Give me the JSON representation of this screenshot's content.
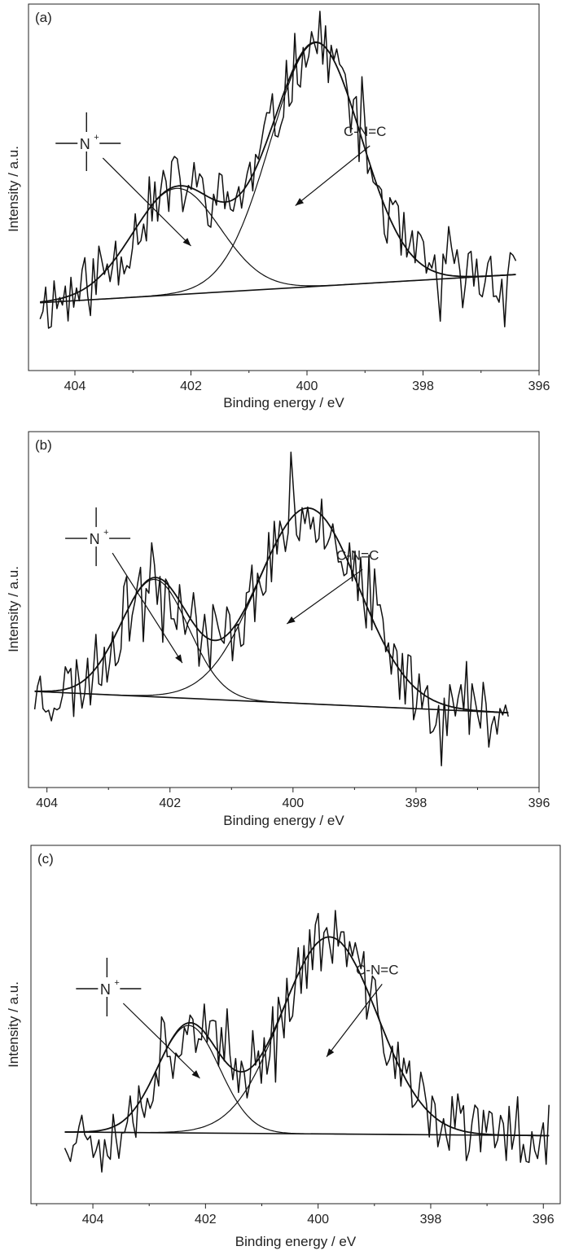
{
  "chart_data": [
    {
      "type": "line",
      "panel_label": "(a)",
      "xlabel": "Binding energy / eV",
      "ylabel": "Intensity / a.u.",
      "xlim": [
        404.8,
        396
      ],
      "ylim": [
        0,
        100
      ],
      "x_reversed": true,
      "x_ticks": [
        404,
        402,
        400,
        398,
        396
      ],
      "x_tick_labels": [
        "404",
        "402",
        "400",
        "398",
        "396"
      ],
      "grid": false,
      "baseline": {
        "start": [
          404.6,
          18.5
        ],
        "end": [
          396.4,
          26.2
        ]
      },
      "peaks": [
        {
          "name": "N+",
          "center": 402.25,
          "height": 29,
          "sigma": 0.75
        },
        {
          "name": "C-N=C",
          "center": 399.85,
          "height": 66.5,
          "sigma": 0.78
        }
      ],
      "noise": {
        "amplitude": 9,
        "seed": 11
      },
      "raw_x_range": [
        404.6,
        396.4
      ],
      "annotations": [
        {
          "id": "n-plus",
          "text": "N",
          "superscript": "+",
          "label_x": 403.8,
          "label_y": 62,
          "arrow_to": [
            402.0,
            34
          ]
        },
        {
          "id": "cnc",
          "text": "C-N=C",
          "label_x": 399.0,
          "label_y": 64,
          "arrow_to": [
            400.2,
            45
          ]
        }
      ]
    },
    {
      "type": "line",
      "panel_label": "(b)",
      "xlabel": "Binding energy / eV",
      "ylabel": "Intensity / a.u.",
      "xlim": [
        404.3,
        396
      ],
      "ylim": [
        0,
        100
      ],
      "x_reversed": true,
      "x_ticks": [
        404,
        402,
        400,
        398,
        396
      ],
      "x_tick_labels": [
        "404",
        "402",
        "400",
        "398",
        "396"
      ],
      "grid": false,
      "baseline": {
        "start": [
          404.2,
          27
        ],
        "end": [
          396.5,
          21
        ]
      },
      "peaks": [
        {
          "name": "N+",
          "center": 402.25,
          "height": 33,
          "sigma": 0.55
        },
        {
          "name": "C-N=C",
          "center": 399.75,
          "height": 55,
          "sigma": 0.82
        }
      ],
      "noise": {
        "amplitude": 10,
        "seed": 23
      },
      "raw_x_range": [
        404.2,
        396.5
      ],
      "annotations": [
        {
          "id": "n-plus",
          "text": "N",
          "superscript": "+",
          "label_x": 403.2,
          "label_y": 70,
          "arrow_to": [
            401.8,
            35
          ]
        },
        {
          "id": "cnc",
          "text": "C-N=C",
          "label_x": 398.95,
          "label_y": 64,
          "arrow_to": [
            400.1,
            46
          ]
        }
      ]
    },
    {
      "type": "line",
      "panel_label": "(c)",
      "xlabel": "Binding energy / eV",
      "ylabel": "Intensity / a.u.",
      "xlim": [
        405.1,
        395.7
      ],
      "ylim": [
        0,
        100
      ],
      "x_reversed": true,
      "x_ticks": [
        404,
        402,
        400,
        398,
        396
      ],
      "x_tick_labels": [
        "404",
        "402",
        "400",
        "398",
        "396"
      ],
      "grid": false,
      "baseline": {
        "start": [
          404.5,
          20
        ],
        "end": [
          395.9,
          19
        ]
      },
      "peaks": [
        {
          "name": "N+",
          "center": 402.3,
          "height": 30,
          "sigma": 0.55
        },
        {
          "name": "C-N=C",
          "center": 399.8,
          "height": 55,
          "sigma": 0.85
        }
      ],
      "noise": {
        "amplitude": 9,
        "seed": 37
      },
      "raw_x_range": [
        404.5,
        395.9
      ],
      "annotations": [
        {
          "id": "n-plus",
          "text": "N",
          "superscript": "+",
          "label_x": 403.75,
          "label_y": 60,
          "arrow_to": [
            402.1,
            35
          ]
        },
        {
          "id": "cnc",
          "text": "C-N=C",
          "label_x": 398.95,
          "label_y": 64,
          "arrow_to": [
            399.85,
            41
          ]
        }
      ]
    }
  ]
}
